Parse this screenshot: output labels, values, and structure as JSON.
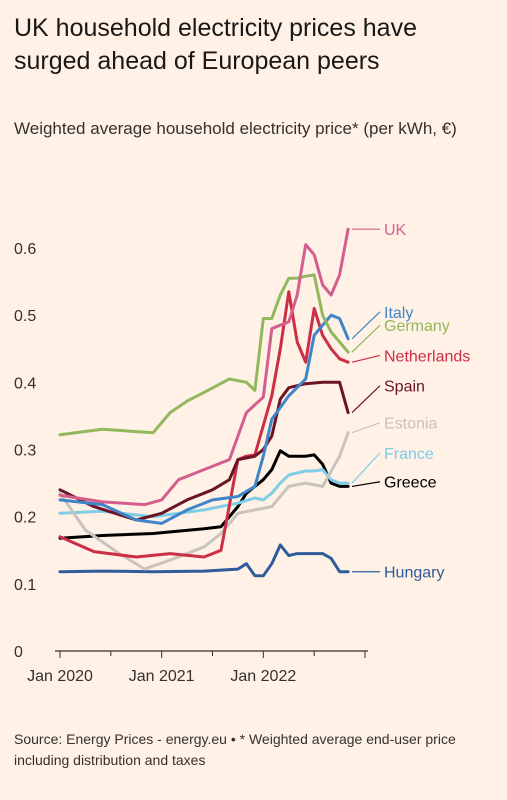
{
  "header": {
    "title": "UK household electricity prices have surged ahead of European peers",
    "subtitle": "Weighted average household electricity price* (per kWh, €)"
  },
  "footer": {
    "source": "Source: Energy Prices - energy.eu • * Weighted average end-user price including distribution and taxes"
  },
  "chart_data": {
    "type": "line",
    "title": "UK household electricity prices have surged ahead of European peers",
    "subtitle": "Weighted average household electricity price* (per kWh, €)",
    "xlabel": "",
    "ylabel": "",
    "x_ticks": [
      "Jan 2020",
      "Jan 2021",
      "Jan 2022"
    ],
    "y_ticks": [
      0,
      0.1,
      0.2,
      0.3,
      0.4,
      0.5,
      0.6
    ],
    "xlim": [
      "2020-01",
      "2022-12"
    ],
    "ylim": [
      0,
      0.65
    ],
    "grid": false,
    "legend": "direct labels at right end of each line",
    "series": [
      {
        "name": "Hungary",
        "color": "#2e5c9a",
        "x": [
          "2020-01",
          "2020-06",
          "2020-12",
          "2021-06",
          "2021-10",
          "2021-11",
          "2021-12",
          "2022-01",
          "2022-02",
          "2022-03",
          "2022-04",
          "2022-05",
          "2022-06",
          "2022-07",
          "2022-08",
          "2022-09",
          "2022-10",
          "2022-11"
        ],
        "y": [
          0.118,
          0.119,
          0.118,
          0.119,
          0.122,
          0.13,
          0.112,
          0.112,
          0.13,
          0.158,
          0.142,
          0.145,
          0.145,
          0.145,
          0.145,
          0.138,
          0.118,
          0.118
        ]
      },
      {
        "name": "Greece",
        "color": "#000000",
        "x": [
          "2020-01",
          "2020-06",
          "2020-12",
          "2021-06",
          "2021-08",
          "2021-10",
          "2021-11",
          "2021-12",
          "2022-01",
          "2022-02",
          "2022-03",
          "2022-04",
          "2022-05",
          "2022-06",
          "2022-07",
          "2022-08",
          "2022-09",
          "2022-10",
          "2022-11"
        ],
        "y": [
          0.168,
          0.172,
          0.175,
          0.182,
          0.185,
          0.215,
          0.235,
          0.245,
          0.255,
          0.27,
          0.298,
          0.29,
          0.29,
          0.29,
          0.292,
          0.278,
          0.25,
          0.245,
          0.245
        ]
      },
      {
        "name": "France",
        "color": "#7fcde6",
        "x": [
          "2020-01",
          "2020-06",
          "2020-12",
          "2021-06",
          "2021-10",
          "2021-12",
          "2022-01",
          "2022-02",
          "2022-03",
          "2022-04",
          "2022-05",
          "2022-06",
          "2022-07",
          "2022-08",
          "2022-09",
          "2022-10",
          "2022-11"
        ],
        "y": [
          0.205,
          0.208,
          0.2,
          0.21,
          0.22,
          0.228,
          0.225,
          0.235,
          0.25,
          0.262,
          0.265,
          0.268,
          0.268,
          0.27,
          0.255,
          0.25,
          0.25
        ]
      },
      {
        "name": "Estonia",
        "color": "#c8c3bd",
        "x": [
          "2020-01",
          "2020-04",
          "2020-08",
          "2020-11",
          "2021-03",
          "2021-06",
          "2021-08",
          "2021-10",
          "2021-12",
          "2022-02",
          "2022-04",
          "2022-06",
          "2022-08",
          "2022-10",
          "2022-11"
        ],
        "y": [
          0.235,
          0.18,
          0.145,
          0.122,
          0.14,
          0.155,
          0.175,
          0.205,
          0.21,
          0.215,
          0.245,
          0.25,
          0.245,
          0.29,
          0.325
        ]
      },
      {
        "name": "Netherlands",
        "color": "#cc2f45",
        "x": [
          "2020-01",
          "2020-05",
          "2020-10",
          "2021-02",
          "2021-06",
          "2021-08",
          "2021-10",
          "2021-11",
          "2021-12",
          "2022-02",
          "2022-03",
          "2022-04",
          "2022-05",
          "2022-06",
          "2022-07",
          "2022-08",
          "2022-09",
          "2022-10",
          "2022-11"
        ],
        "y": [
          0.17,
          0.148,
          0.14,
          0.145,
          0.14,
          0.15,
          0.285,
          0.29,
          0.292,
          0.38,
          0.45,
          0.535,
          0.46,
          0.43,
          0.51,
          0.47,
          0.45,
          0.435,
          0.43
        ]
      },
      {
        "name": "Spain",
        "color": "#6b1427",
        "x": [
          "2020-01",
          "2020-05",
          "2020-10",
          "2021-01",
          "2021-04",
          "2021-07",
          "2021-09",
          "2021-10",
          "2021-12",
          "2022-01",
          "2022-02",
          "2022-03",
          "2022-04",
          "2022-06",
          "2022-08",
          "2022-10",
          "2022-11"
        ],
        "y": [
          0.24,
          0.215,
          0.195,
          0.205,
          0.225,
          0.24,
          0.255,
          0.285,
          0.29,
          0.3,
          0.32,
          0.375,
          0.392,
          0.398,
          0.4,
          0.4,
          0.355
        ]
      },
      {
        "name": "Italy",
        "color": "#3f86c9",
        "x": [
          "2020-01",
          "2020-06",
          "2020-10",
          "2021-01",
          "2021-04",
          "2021-07",
          "2021-10",
          "2021-12",
          "2022-01",
          "2022-02",
          "2022-04",
          "2022-06",
          "2022-07",
          "2022-08",
          "2022-09",
          "2022-10",
          "2022-11"
        ],
        "y": [
          0.225,
          0.218,
          0.195,
          0.19,
          0.21,
          0.225,
          0.23,
          0.245,
          0.29,
          0.345,
          0.38,
          0.405,
          0.47,
          0.485,
          0.5,
          0.495,
          0.465
        ]
      },
      {
        "name": "Germany",
        "color": "#93b75d",
        "x": [
          "2020-01",
          "2020-06",
          "2020-12",
          "2021-02",
          "2021-04",
          "2021-06",
          "2021-09",
          "2021-11",
          "2021-12",
          "2022-01",
          "2022-02",
          "2022-03",
          "2022-04",
          "2022-05",
          "2022-06",
          "2022-07",
          "2022-08",
          "2022-09",
          "2022-10",
          "2022-11"
        ],
        "y": [
          0.322,
          0.33,
          0.325,
          0.355,
          0.372,
          0.385,
          0.405,
          0.4,
          0.388,
          0.495,
          0.495,
          0.53,
          0.555,
          0.555,
          0.558,
          0.56,
          0.5,
          0.475,
          0.46,
          0.445
        ]
      },
      {
        "name": "UK",
        "color": "#d45f8e",
        "x": [
          "2020-01",
          "2020-03",
          "2020-06",
          "2020-11",
          "2021-01",
          "2021-03",
          "2021-06",
          "2021-09",
          "2021-11",
          "2022-01",
          "2022-02",
          "2022-03",
          "2022-04",
          "2022-05",
          "2022-06",
          "2022-07",
          "2022-08",
          "2022-09",
          "2022-10",
          "2022-11"
        ],
        "y": [
          0.232,
          0.228,
          0.222,
          0.218,
          0.225,
          0.255,
          0.27,
          0.285,
          0.355,
          0.378,
          0.48,
          0.485,
          0.49,
          0.53,
          0.605,
          0.59,
          0.545,
          0.53,
          0.56,
          0.628
        ]
      }
    ],
    "labels": [
      {
        "series": "UK",
        "text": "UK",
        "y": 0.628
      },
      {
        "series": "Italy",
        "text": "Italy",
        "y": 0.505
      },
      {
        "series": "Germany",
        "text": "Germany",
        "y": 0.485
      },
      {
        "series": "Netherlands",
        "text": "Netherlands",
        "y": 0.44
      },
      {
        "series": "Spain",
        "text": "Spain",
        "y": 0.395
      },
      {
        "series": "Estonia",
        "text": "Estonia",
        "y": 0.34
      },
      {
        "series": "France",
        "text": "France",
        "y": 0.295
      },
      {
        "series": "Greece",
        "text": "Greece",
        "y": 0.252
      },
      {
        "series": "Hungary",
        "text": "Hungary",
        "y": 0.118
      }
    ]
  }
}
